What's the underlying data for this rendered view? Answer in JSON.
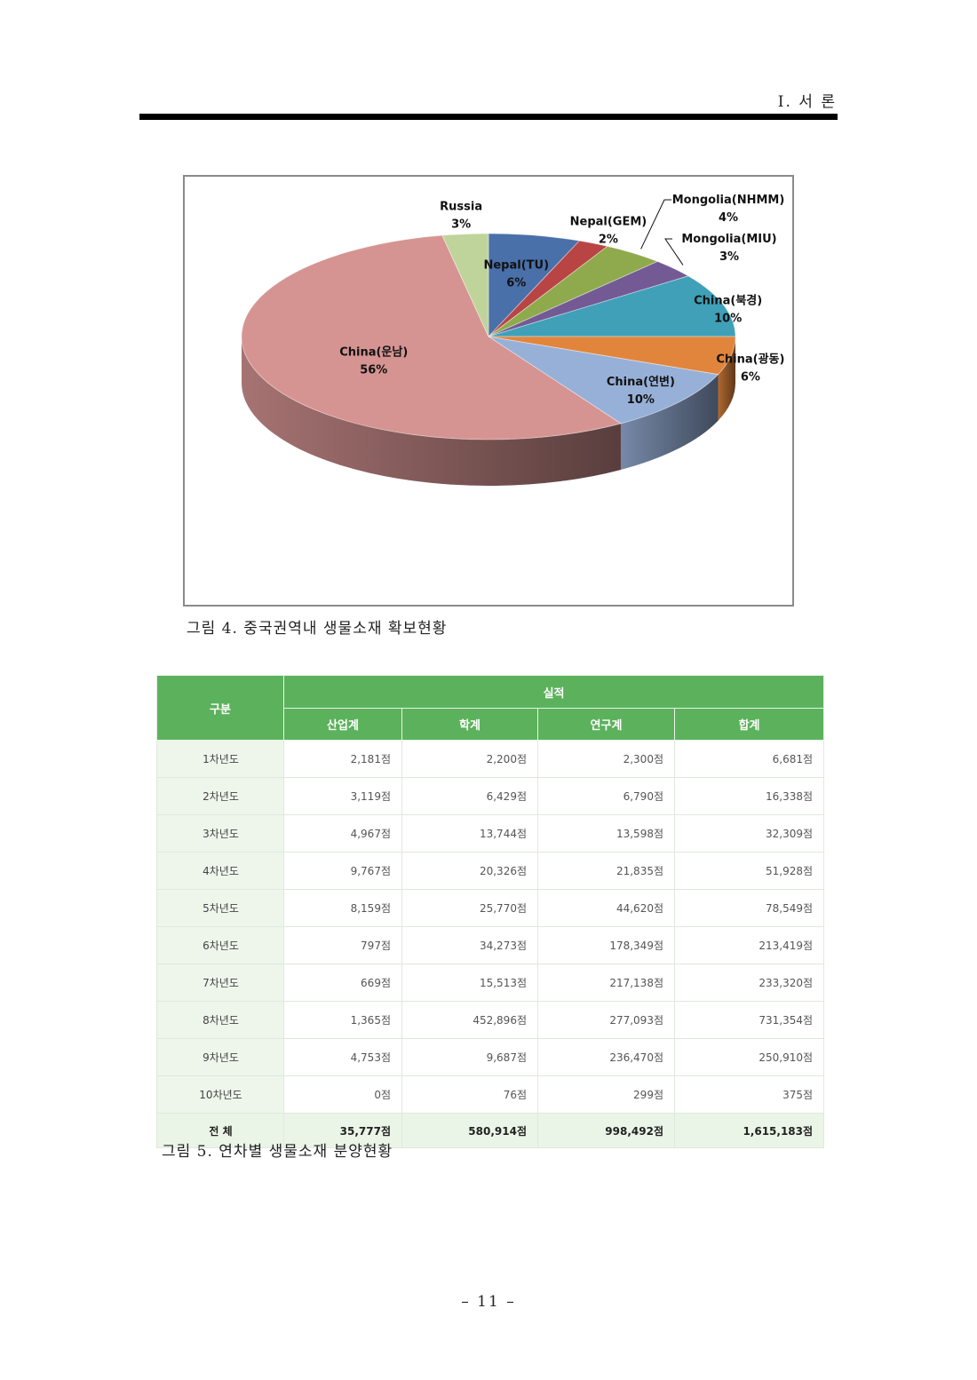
{
  "header": {
    "section": "I. 서  론"
  },
  "figure4": {
    "caption": "그림 4. 중국권역내 생물소재 확보현황",
    "chart_data": {
      "type": "pie",
      "title": "",
      "slices": [
        {
          "label": "Nepal(TU)",
          "value": 6,
          "value_label": "6%",
          "color": "#4a70aa"
        },
        {
          "label": "Nepal(GEM)",
          "value": 2,
          "value_label": "2%",
          "color": "#b94444"
        },
        {
          "label": "Mongolia(NHMM)",
          "value": 4,
          "value_label": "4%",
          "color": "#8faa4c"
        },
        {
          "label": "Mongolia(MIU)",
          "value": 3,
          "value_label": "3%",
          "color": "#735a95"
        },
        {
          "label": "China(북경)",
          "value": 10,
          "value_label": "10%",
          "color": "#3fa0b8"
        },
        {
          "label": "China(광동)",
          "value": 6,
          "value_label": "6%",
          "color": "#e2853c"
        },
        {
          "label": "China(연변)",
          "value": 10,
          "value_label": "10%",
          "color": "#97b0d8"
        },
        {
          "label": "China(운남)",
          "value": 56,
          "value_label": "56%",
          "color": "#d59492"
        },
        {
          "label": "Russia",
          "value": 3,
          "value_label": "3%",
          "color": "#bfd49a"
        }
      ]
    }
  },
  "figure5": {
    "caption": "그림 5. 연차별 생물소재 분양현황",
    "header": {
      "group": "구분",
      "result": "실적",
      "columns": [
        "산업계",
        "학계",
        "연구계",
        "합계"
      ]
    },
    "rows": [
      {
        "label": "1차년도",
        "values": [
          "2,181점",
          "2,200점",
          "2,300점",
          "6,681점"
        ]
      },
      {
        "label": "2차년도",
        "values": [
          "3,119점",
          "6,429점",
          "6,790점",
          "16,338점"
        ]
      },
      {
        "label": "3차년도",
        "values": [
          "4,967점",
          "13,744점",
          "13,598점",
          "32,309점"
        ]
      },
      {
        "label": "4차년도",
        "values": [
          "9,767점",
          "20,326점",
          "21,835점",
          "51,928점"
        ]
      },
      {
        "label": "5차년도",
        "values": [
          "8,159점",
          "25,770점",
          "44,620점",
          "78,549점"
        ]
      },
      {
        "label": "6차년도",
        "values": [
          "797점",
          "34,273점",
          "178,349점",
          "213,419점"
        ]
      },
      {
        "label": "7차년도",
        "values": [
          "669점",
          "15,513점",
          "217,138점",
          "233,320점"
        ]
      },
      {
        "label": "8차년도",
        "values": [
          "1,365점",
          "452,896점",
          "277,093점",
          "731,354점"
        ]
      },
      {
        "label": "9차년도",
        "values": [
          "4,753점",
          "9,687점",
          "236,470점",
          "250,910점"
        ]
      },
      {
        "label": "10차년도",
        "values": [
          "0점",
          "76점",
          "299점",
          "375점"
        ]
      }
    ],
    "total": {
      "label": "전 체",
      "values": [
        "35,777점",
        "580,914점",
        "998,492점",
        "1,615,183점"
      ]
    }
  },
  "page_number": "– 11 –"
}
